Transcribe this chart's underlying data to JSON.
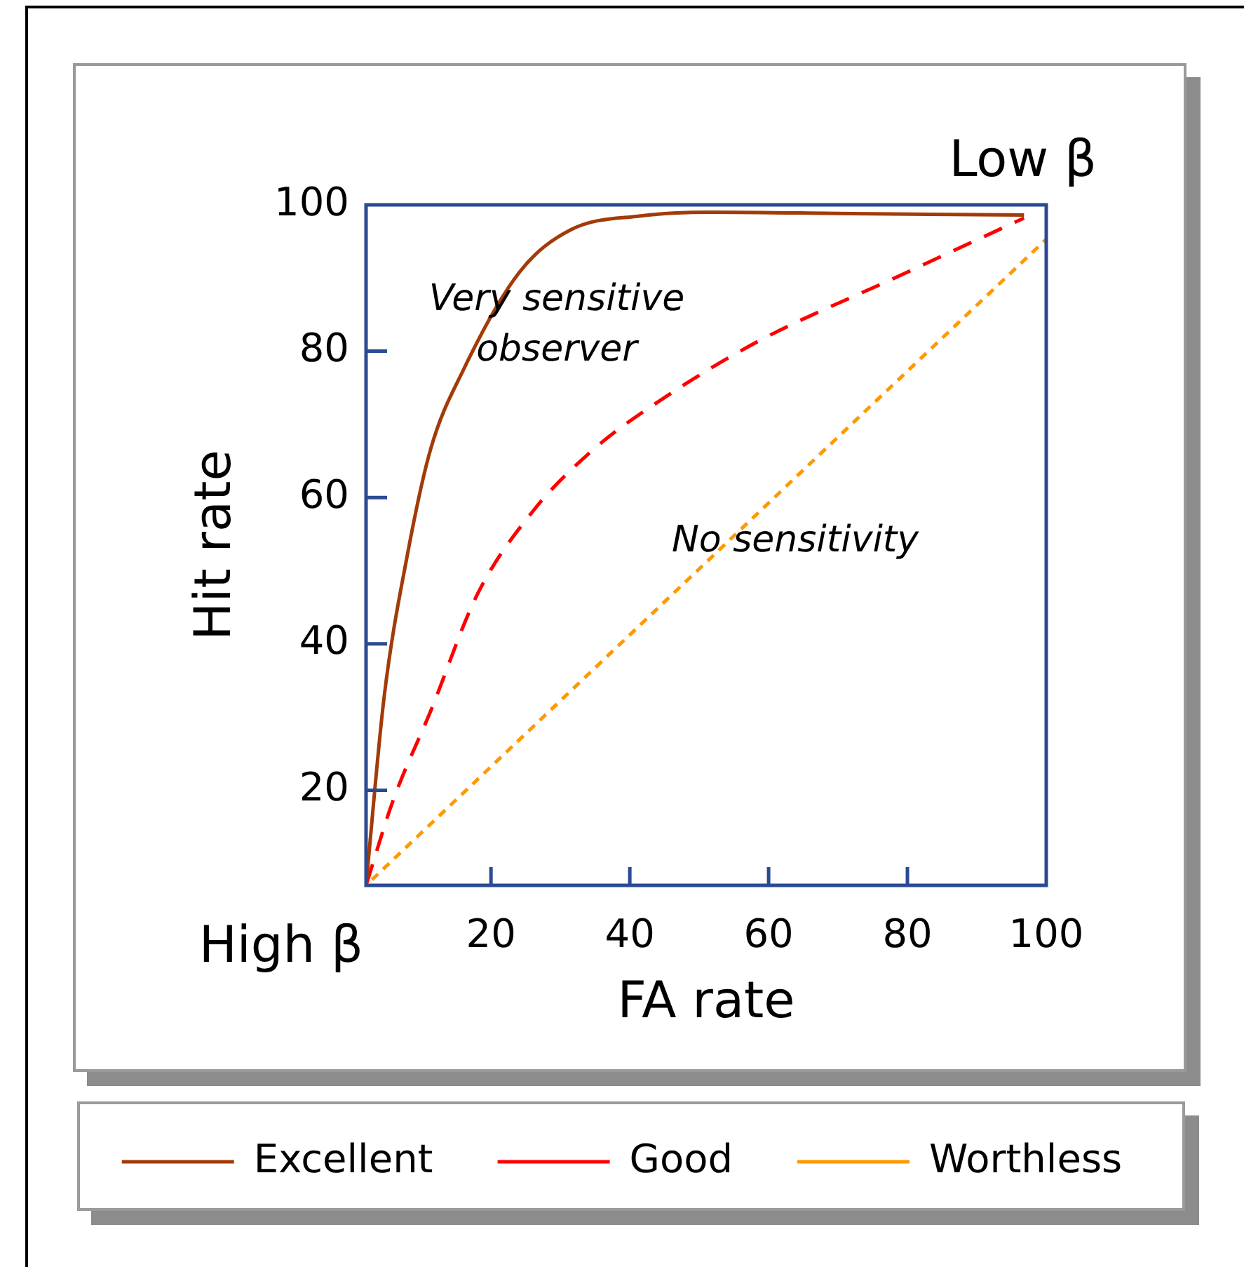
{
  "chart_data": {
    "type": "line",
    "xlabel": "FA rate",
    "ylabel": "Hit rate",
    "xlim": [
      2,
      100
    ],
    "ylim": [
      7,
      100
    ],
    "xticks": [
      20,
      40,
      60,
      80,
      100
    ],
    "yticks": [
      20,
      40,
      60,
      80,
      100
    ],
    "grid": false,
    "legend": "bottom",
    "marker": "none",
    "series": [
      {
        "name": "Excellent",
        "color": "#a33b08",
        "line_style": "solid",
        "x": [
          2,
          4.6,
          7.9,
          11.3,
          16,
          24.1,
          31.5,
          41.6,
          51.7,
          71.9,
          96.8
        ],
        "values": [
          7,
          32.7,
          51.9,
          66.6,
          77.4,
          90.8,
          96.6,
          98.5,
          99,
          98.8,
          98.6
        ]
      },
      {
        "name": "Good",
        "color": "#ff0000",
        "line_style": "dashed",
        "x": [
          2,
          5.9,
          11.3,
          18,
          26.1,
          34.8,
          44.9,
          58.4,
          78.6,
          96.8
        ],
        "values": [
          7,
          18.6,
          30.8,
          46.7,
          58.2,
          66.6,
          73.6,
          81.3,
          90.2,
          98.2
        ]
      },
      {
        "name": "Worthless",
        "color": "#ff9900",
        "line_style": "dotted",
        "x": [
          2,
          100
        ],
        "values": [
          7,
          95.3
        ]
      }
    ],
    "annotations": [
      "Very sensitive observer",
      "No sensitivity",
      "Low β",
      "High β"
    ]
  }
}
